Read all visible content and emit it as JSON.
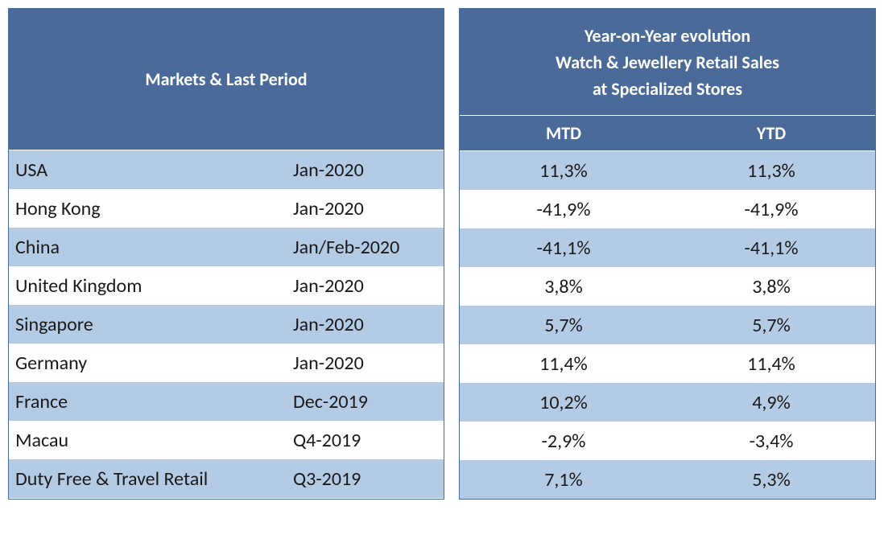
{
  "table": {
    "type": "table",
    "header": {
      "left_title": "Markets & Last Period",
      "right_title_line1": "Year-on-Year evolution",
      "right_title_line2": "Watch & Jewellery Retail Sales",
      "right_title_line3": "at Specialized  Stores",
      "col_mtd": "MTD",
      "col_ytd": "YTD"
    },
    "colors": {
      "header_bg": "#4a6a9a",
      "header_fg": "#ffffff",
      "row_stripe": "#b4cbe6",
      "row_plain": "#ffffff",
      "border": "#4a6a9a",
      "text": "#1a1a1a"
    },
    "fonts": {
      "header_size_pt": 16,
      "body_size_pt": 18,
      "header_weight": "bold"
    },
    "columns": [
      "Market",
      "Last Period",
      "MTD",
      "YTD"
    ],
    "rows": [
      {
        "market": "USA",
        "period": "Jan-2020",
        "mtd": "11,3%",
        "ytd": "11,3%"
      },
      {
        "market": "Hong Kong",
        "period": "Jan-2020",
        "mtd": "-41,9%",
        "ytd": "-41,9%"
      },
      {
        "market": "China",
        "period": "Jan/Feb-2020",
        "mtd": "-41,1%",
        "ytd": "-41,1%"
      },
      {
        "market": "United Kingdom",
        "period": "Jan-2020",
        "mtd": "3,8%",
        "ytd": "3,8%"
      },
      {
        "market": "Singapore",
        "period": "Jan-2020",
        "mtd": "5,7%",
        "ytd": "5,7%"
      },
      {
        "market": "Germany",
        "period": "Jan-2020",
        "mtd": "11,4%",
        "ytd": "11,4%"
      },
      {
        "market": "France",
        "period": "Dec-2019",
        "mtd": "10,2%",
        "ytd": "4,9%"
      },
      {
        "market": "Macau",
        "period": "Q4-2019",
        "mtd": "-2,9%",
        "ytd": "-3,4%"
      },
      {
        "market": "Duty Free & Travel Retail",
        "period": "Q3-2019",
        "mtd": "7,1%",
        "ytd": "5,3%"
      }
    ]
  }
}
